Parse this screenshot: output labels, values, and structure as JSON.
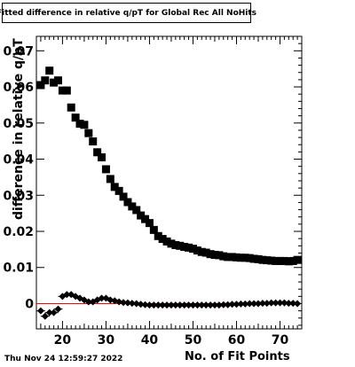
{
  "title": "Fitted difference in relative q/pT for Global Rec All NoHits",
  "footer": {
    "date": "Thu Nov 24 12:59:27 2022"
  },
  "chart_data": {
    "type": "scatter",
    "title": "Fitted difference in relative q/pT for Global Rec All NoHits",
    "xlabel": "No. of Fit Points",
    "ylabel": "difference in relative q/pT",
    "xlim": [
      14,
      75
    ],
    "ylim": [
      -0.007,
      0.074
    ],
    "x_ticks": [
      20,
      30,
      40,
      50,
      60,
      70
    ],
    "y_ticks": [
      0,
      0.01,
      0.02,
      0.03,
      0.04,
      0.05,
      0.06,
      0.07
    ],
    "y_tick_labels": [
      "0",
      "0.01",
      "0.02",
      "0.03",
      "0.04",
      "0.05",
      "0.06",
      "0.07"
    ],
    "reference_line": {
      "y": 0,
      "color": "#ff0000"
    },
    "marker_color": "#000000",
    "series": [
      {
        "marker": "square",
        "x": [
          15,
          16,
          17,
          18,
          19,
          20,
          21,
          22,
          23,
          24,
          25,
          26,
          27,
          28,
          29,
          30,
          31,
          32,
          33,
          34,
          35,
          36,
          37,
          38,
          39,
          40,
          41,
          42,
          43,
          44,
          45,
          46,
          47,
          48,
          49,
          50,
          51,
          52,
          53,
          54,
          55,
          56,
          57,
          58,
          59,
          60,
          61,
          62,
          63,
          64,
          65,
          66,
          67,
          68,
          69,
          70,
          71,
          72,
          73,
          74
        ],
        "values": [
          0.0605,
          0.0618,
          0.0645,
          0.0612,
          0.0618,
          0.059,
          0.059,
          0.0543,
          0.0515,
          0.0498,
          0.0495,
          0.0472,
          0.0449,
          0.0419,
          0.0405,
          0.0372,
          0.0345,
          0.0323,
          0.0312,
          0.0296,
          0.0281,
          0.0269,
          0.0259,
          0.0244,
          0.0234,
          0.0223,
          0.0204,
          0.0187,
          0.0179,
          0.0172,
          0.0166,
          0.0162,
          0.016,
          0.0157,
          0.0155,
          0.0152,
          0.0147,
          0.0143,
          0.0141,
          0.0137,
          0.0135,
          0.0134,
          0.0131,
          0.0129,
          0.0129,
          0.0128,
          0.0127,
          0.0127,
          0.0126,
          0.0124,
          0.0123,
          0.0121,
          0.012,
          0.0119,
          0.0118,
          0.0118,
          0.0118,
          0.0117,
          0.0118,
          0.0121
        ]
      },
      {
        "marker": "diamond",
        "x": [
          15,
          16,
          17,
          18,
          19,
          20,
          21,
          22,
          23,
          24,
          25,
          26,
          27,
          28,
          29,
          30,
          31,
          32,
          33,
          34,
          35,
          36,
          37,
          38,
          39,
          40,
          41,
          42,
          43,
          44,
          45,
          46,
          47,
          48,
          49,
          50,
          51,
          52,
          53,
          54,
          55,
          56,
          57,
          58,
          59,
          60,
          61,
          62,
          63,
          64,
          65,
          66,
          67,
          68,
          69,
          70,
          71,
          72,
          73,
          74
        ],
        "values": [
          -0.002,
          -0.0035,
          -0.0025,
          -0.0025,
          -0.0015,
          0.002,
          0.0025,
          0.0025,
          0.002,
          0.0015,
          0.001,
          0.0005,
          0.0005,
          0.001,
          0.0015,
          0.0015,
          0.001,
          0.0008,
          0.0005,
          0.0003,
          0.0002,
          0.0001,
          0,
          -0.0002,
          -0.0003,
          -0.0004,
          -0.0004,
          -0.0004,
          -0.0004,
          -0.0004,
          -0.0004,
          -0.0004,
          -0.0004,
          -0.0004,
          -0.0004,
          -0.0004,
          -0.0004,
          -0.0004,
          -0.0004,
          -0.0004,
          -0.0004,
          -0.0004,
          -0.0003,
          -0.0003,
          -0.0002,
          -0.0002,
          -0.0001,
          -0.0001,
          0,
          0,
          0,
          0.0001,
          0.0001,
          0.0002,
          0.0002,
          0.0002,
          0.0002,
          0.0001,
          0.0001,
          0
        ]
      }
    ]
  }
}
